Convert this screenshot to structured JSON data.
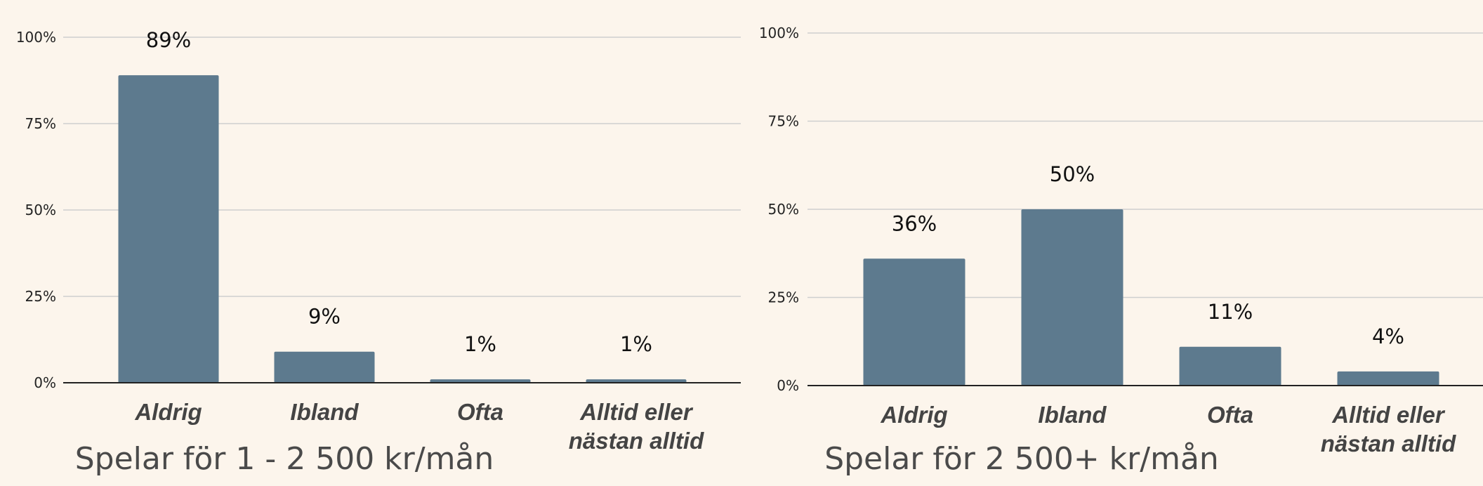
{
  "chart_data": [
    {
      "type": "bar",
      "title": "Spelar för 1 - 2 500 kr/mån",
      "categories": [
        [
          "Aldrig"
        ],
        [
          "Ibland"
        ],
        [
          "Ofta"
        ],
        [
          "Alltid eller",
          "nästan alltid"
        ]
      ],
      "values": [
        89,
        9,
        1,
        1
      ],
      "value_labels": [
        "89%",
        "9%",
        "1%",
        "1%"
      ],
      "y_ticks": [
        "0%",
        "25%",
        "50%",
        "75%",
        "100%"
      ],
      "ylim": [
        0,
        100
      ],
      "grid": true,
      "bar_color": "#5d7a8e"
    },
    {
      "type": "bar",
      "title": "Spelar för 2 500+ kr/mån",
      "categories": [
        [
          "Aldrig"
        ],
        [
          "Ibland"
        ],
        [
          "Ofta"
        ],
        [
          "Alltid eller",
          "nästan alltid"
        ]
      ],
      "values": [
        36,
        50,
        11,
        4
      ],
      "value_labels": [
        "36%",
        "50%",
        "11%",
        "4%"
      ],
      "y_ticks": [
        "0%",
        "25%",
        "50%",
        "75%",
        "100%"
      ],
      "ylim": [
        0,
        100
      ],
      "grid": true,
      "bar_color": "#5d7a8e"
    }
  ]
}
